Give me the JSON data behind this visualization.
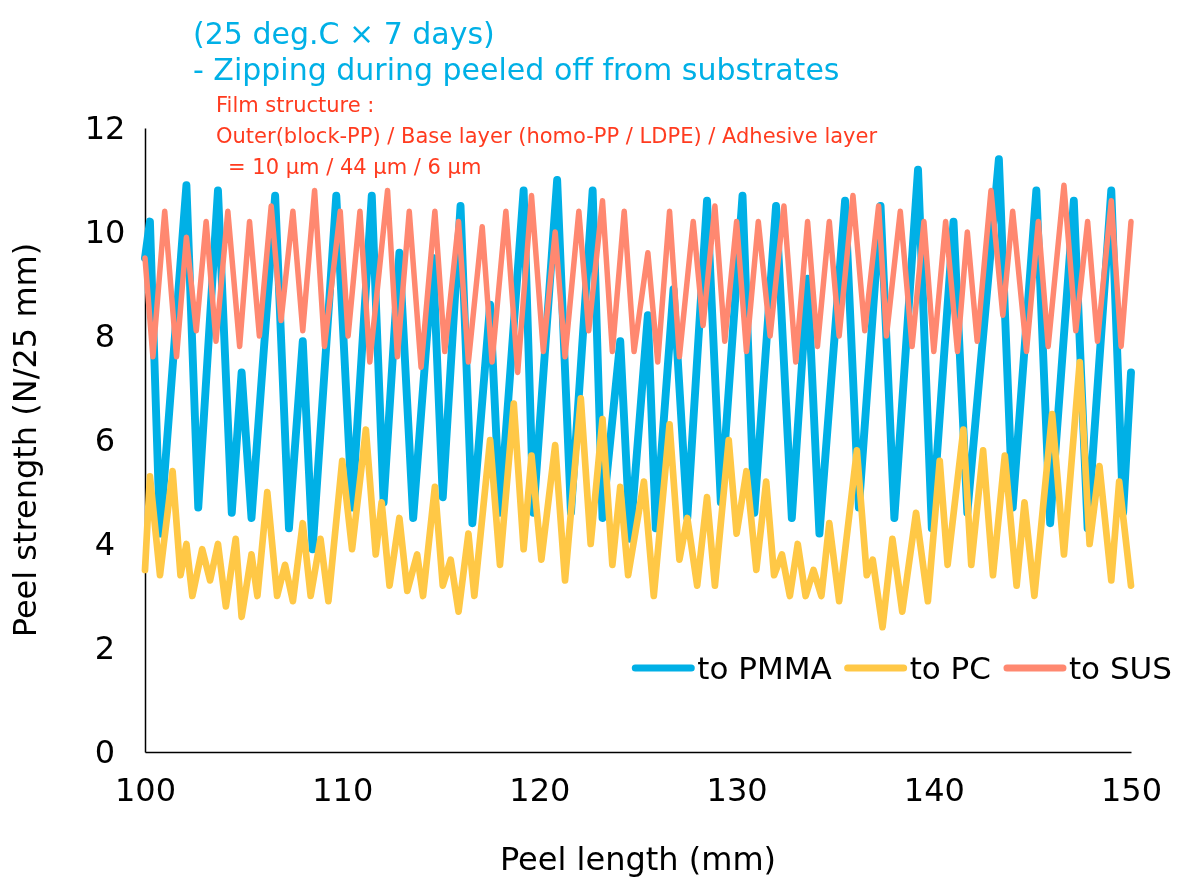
{
  "chart_data": {
    "type": "line",
    "title": "(25 deg.C × 7 days)",
    "subtitle": "- Zipping during peeled off from substrates",
    "annotations": [
      "Film structure :",
      "Outer(block-PP) / Base layer (homo-PP / LDPE) / Adhesive layer",
      "= 10 μm / 44 μm / 6 μm"
    ],
    "xlabel": "Peel length (mm)",
    "ylabel": "Peel strength (N/25 mm)",
    "xlim": [
      100,
      150
    ],
    "xticks": [
      100,
      110,
      120,
      130,
      140,
      150
    ],
    "ylim": [
      0,
      12
    ],
    "yticks": [
      0,
      2,
      4,
      6,
      8,
      10,
      12
    ],
    "grid": false,
    "legend": "bottom right",
    "marker": "none",
    "line_style": "solid",
    "series": [
      {
        "name": "to PMMA",
        "color": "#00b0e6",
        "x": [
          100,
          100.25,
          100.76,
          102.1,
          102.7,
          103.7,
          104.4,
          104.9,
          105.4,
          106.6,
          107.3,
          108.0,
          108.5,
          109.7,
          110.5,
          111.5,
          112.1,
          112.9,
          113.6,
          114.6,
          115.1,
          116.0,
          116.6,
          117.5,
          118.0,
          119.2,
          119.7,
          120.9,
          121.6,
          122.7,
          123.2,
          124.1,
          124.6,
          125.5,
          125.9,
          126.8,
          127.5,
          128.5,
          129.2,
          130.3,
          130.9,
          132.0,
          132.8,
          133.6,
          134.2,
          135.5,
          136.2,
          137.3,
          138.0,
          139.2,
          139.9,
          141.0,
          141.7,
          143.3,
          144.0,
          145.2,
          145.9,
          147.1,
          147.8,
          149.0,
          149.6,
          150
        ],
        "values": [
          9.5,
          10.2,
          4.2,
          10.9,
          4.7,
          10.8,
          4.6,
          7.3,
          4.5,
          10.7,
          4.3,
          7.9,
          3.9,
          10.7,
          4.7,
          10.7,
          4.8,
          9.6,
          4.5,
          9.5,
          4.9,
          10.5,
          4.4,
          8.6,
          4.6,
          10.8,
          4.6,
          11.0,
          4.6,
          10.8,
          4.5,
          7.9,
          4.1,
          8.4,
          4.3,
          8.9,
          4.5,
          10.6,
          4.8,
          10.7,
          4.6,
          10.5,
          4.5,
          9.1,
          4.2,
          10.6,
          4.7,
          10.5,
          4.5,
          11.2,
          4.3,
          10.2,
          4.6,
          11.4,
          4.7,
          10.8,
          4.4,
          10.6,
          4.3,
          10.8,
          4.6,
          7.3
        ]
      },
      {
        "name": "to PC",
        "color": "#ffc846",
        "x": [
          100,
          100.25,
          100.76,
          101.4,
          101.8,
          102.1,
          102.4,
          102.9,
          103.3,
          103.7,
          104.1,
          104.6,
          104.9,
          105.4,
          105.7,
          106.2,
          106.7,
          107.1,
          107.5,
          108.0,
          108.4,
          108.9,
          109.3,
          110.0,
          110.5,
          111.2,
          111.7,
          112.0,
          112.4,
          112.9,
          113.3,
          113.8,
          114.1,
          114.7,
          115.1,
          115.5,
          115.9,
          116.4,
          116.7,
          117.5,
          118.0,
          118.7,
          119.2,
          119.6,
          120.1,
          120.8,
          121.3,
          122.1,
          122.6,
          123.2,
          123.7,
          124.1,
          124.5,
          125.3,
          125.8,
          126.6,
          127.1,
          127.5,
          128.0,
          128.5,
          128.9,
          129.6,
          130.0,
          130.5,
          131.0,
          131.5,
          131.9,
          132.3,
          132.7,
          133.1,
          133.5,
          133.9,
          134.3,
          134.7,
          135.2,
          136.1,
          136.6,
          136.9,
          137.4,
          137.9,
          138.4,
          139.1,
          139.7,
          140.3,
          140.7,
          141.5,
          141.9,
          142.5,
          143.0,
          143.6,
          144.2,
          144.6,
          145.1,
          146.0,
          146.6,
          147.4,
          147.9,
          148.4,
          149.0,
          149.4,
          150
        ],
        "values": [
          3.5,
          5.3,
          3.4,
          5.4,
          3.4,
          4.0,
          3.0,
          3.9,
          3.3,
          4.0,
          2.8,
          4.1,
          2.6,
          3.8,
          3.0,
          5.0,
          3.0,
          3.6,
          2.9,
          4.4,
          3.0,
          4.1,
          2.9,
          5.6,
          3.9,
          6.2,
          3.8,
          4.8,
          3.2,
          4.5,
          3.1,
          3.8,
          3.0,
          5.1,
          3.2,
          3.7,
          2.7,
          4.2,
          3.0,
          6.0,
          3.6,
          6.7,
          3.9,
          5.7,
          3.7,
          5.9,
          3.3,
          6.8,
          4.0,
          6.4,
          3.6,
          5.1,
          3.4,
          5.2,
          3.0,
          6.3,
          3.7,
          4.5,
          3.2,
          4.9,
          3.2,
          6.0,
          4.2,
          5.4,
          3.5,
          5.2,
          3.4,
          3.8,
          3.0,
          4.0,
          3.0,
          3.5,
          3.0,
          4.4,
          2.9,
          5.8,
          3.4,
          3.7,
          2.4,
          4.1,
          2.7,
          4.6,
          2.9,
          5.6,
          3.6,
          6.2,
          3.6,
          5.8,
          3.4,
          5.7,
          3.2,
          4.8,
          3.0,
          6.5,
          3.8,
          7.5,
          4.0,
          5.5,
          3.3,
          5.2,
          3.2
        ]
      },
      {
        "name": "to SUS",
        "color": "#ff8870",
        "x": [
          100,
          100.4,
          101.0,
          101.6,
          102.1,
          102.6,
          103.1,
          103.6,
          104.2,
          104.8,
          105.3,
          105.8,
          106.4,
          106.9,
          107.5,
          108.0,
          108.6,
          109.1,
          109.9,
          110.3,
          110.9,
          111.4,
          112.3,
          112.8,
          113.4,
          114.0,
          114.7,
          115.2,
          115.9,
          116.4,
          117.1,
          117.6,
          118.3,
          118.9,
          119.6,
          120.2,
          120.8,
          121.3,
          122.0,
          122.5,
          123.2,
          123.7,
          124.3,
          124.8,
          125.5,
          126.0,
          126.6,
          127.1,
          127.8,
          128.3,
          128.9,
          129.4,
          130.0,
          130.5,
          131.1,
          131.7,
          132.4,
          133.0,
          133.6,
          134.1,
          134.7,
          135.2,
          135.9,
          136.5,
          137.2,
          137.6,
          138.3,
          138.9,
          139.5,
          140.0,
          140.6,
          141.2,
          141.7,
          142.2,
          142.9,
          143.5,
          144.0,
          144.7,
          145.3,
          145.8,
          146.6,
          147.2,
          147.8,
          148.3,
          149.0,
          149.5,
          150
        ],
        "values": [
          9.5,
          7.6,
          10.4,
          7.6,
          9.9,
          8.1,
          10.2,
          7.9,
          10.4,
          7.8,
          10.2,
          8.0,
          10.5,
          8.3,
          10.4,
          8.1,
          10.8,
          7.8,
          10.4,
          8.0,
          10.4,
          7.5,
          10.8,
          7.6,
          10.4,
          7.4,
          10.4,
          7.7,
          10.2,
          7.5,
          10.1,
          7.5,
          10.4,
          7.3,
          10.7,
          7.7,
          10.0,
          7.6,
          10.4,
          8.1,
          10.6,
          7.7,
          10.4,
          7.7,
          9.6,
          7.5,
          10.4,
          7.6,
          10.2,
          8.2,
          10.5,
          7.9,
          10.2,
          7.7,
          10.2,
          8.0,
          10.5,
          7.5,
          10.2,
          7.8,
          10.2,
          8.0,
          10.7,
          8.1,
          10.5,
          8.0,
          10.4,
          7.8,
          10.2,
          7.7,
          10.2,
          7.7,
          10.0,
          7.9,
          10.8,
          8.4,
          10.4,
          7.7,
          10.2,
          7.8,
          10.9,
          8.1,
          10.2,
          7.9,
          10.6,
          7.8,
          10.2
        ]
      }
    ]
  }
}
